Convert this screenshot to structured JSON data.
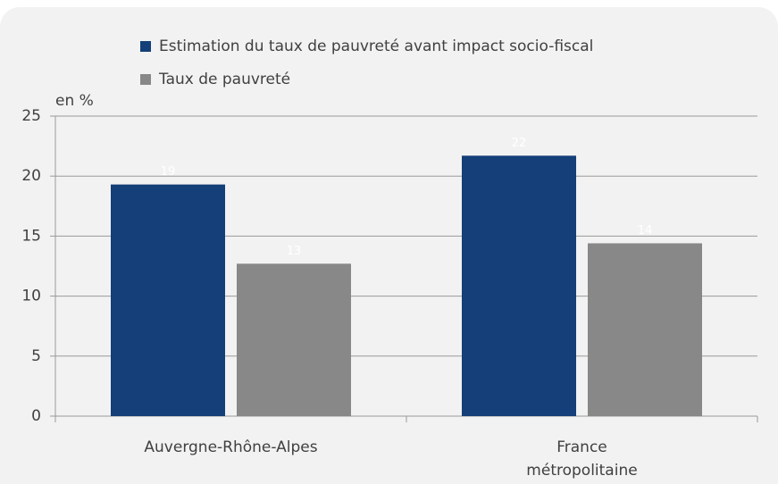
{
  "chart_data": {
    "type": "bar",
    "y_label": "en %",
    "categories": [
      "Auvergne-Rhône-Alpes",
      "France métropolitaine"
    ],
    "series": [
      {
        "name": "Estimation du taux de pauvreté avant impact socio-fiscal",
        "color": "#143f78",
        "values": [
          19.3,
          21.7
        ],
        "value_labels": [
          "19",
          "22"
        ]
      },
      {
        "name": "Taux de pauvreté",
        "color": "#888888",
        "values": [
          12.7,
          14.4
        ],
        "value_labels": [
          "13",
          "14"
        ]
      }
    ],
    "ylim": [
      0,
      25
    ],
    "yticks": [
      0,
      5,
      10,
      15,
      20,
      25
    ],
    "grid": true
  }
}
